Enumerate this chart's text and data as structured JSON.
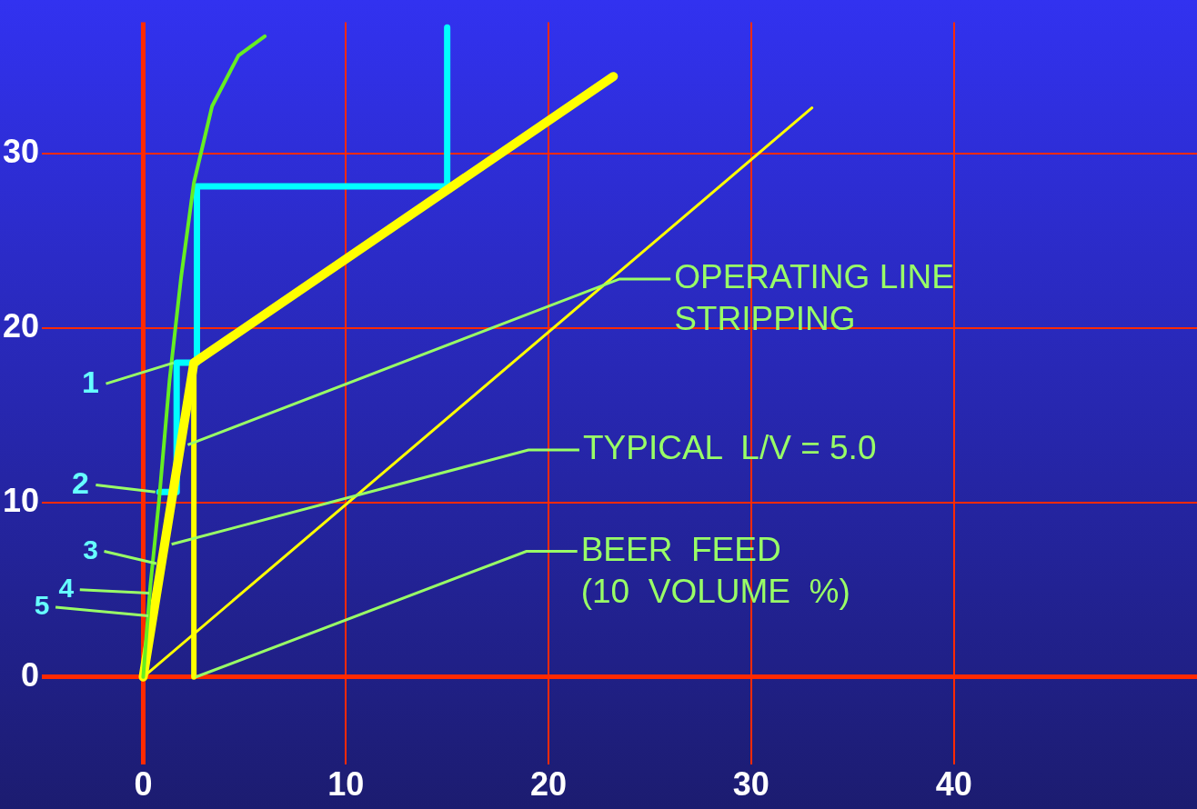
{
  "chart_data": {
    "type": "line",
    "xlim": [
      -5,
      52
    ],
    "ylim": [
      -5,
      37.5
    ],
    "xticks": [
      0,
      10,
      20,
      30,
      40
    ],
    "yticks": [
      0,
      10,
      20,
      30
    ],
    "grid": true,
    "legend": false,
    "marker": "none",
    "line_style": "solid",
    "series": [
      {
        "color": "#66ee22",
        "x": [
          0,
          0.35,
          0.78,
          1.3,
          1.87,
          2.5,
          3.4,
          4.7,
          6
        ],
        "values": [
          0,
          5.2,
          10.1,
          17,
          22.9,
          28.3,
          32.7,
          35.6,
          36.7
        ]
      },
      {
        "color": "#ffff00",
        "x": [
          0,
          2.5,
          23.2
        ],
        "values": [
          0,
          18,
          34.4
        ]
      },
      {
        "color": "#ffff00",
        "x": [
          2.5,
          2.5
        ],
        "values": [
          0,
          18
        ]
      },
      {
        "color": "#ffff00",
        "x": [
          0,
          33
        ],
        "values": [
          0,
          32.6
        ]
      },
      {
        "color": "#00ffff",
        "x": [
          15,
          15,
          2.65,
          2.65,
          1.65,
          1.65,
          0.8
        ],
        "values": [
          37.2,
          28.1,
          28.1,
          18,
          18,
          10.6,
          10.6
        ]
      }
    ],
    "annotations": [
      {
        "text": "OPERATING LINE\nSTRIPPING",
        "x": 2.2,
        "y": 13.3
      },
      {
        "text": "TYPICAL  L/V = 5.0",
        "x": 1.4,
        "y": 7.6
      },
      {
        "text": "BEER  FEED\n(10  VOLUME  %)",
        "x": 2.6,
        "y": 0
      },
      {
        "text": "1",
        "x": 1.5,
        "y": 18
      },
      {
        "text": "2",
        "x": 0.6,
        "y": 10.6
      },
      {
        "text": "3",
        "x": 0.65,
        "y": 6.5
      },
      {
        "text": "4",
        "x": 0.3,
        "y": 4.8
      },
      {
        "text": "5",
        "x": 0.25,
        "y": 3.5
      }
    ]
  }
}
